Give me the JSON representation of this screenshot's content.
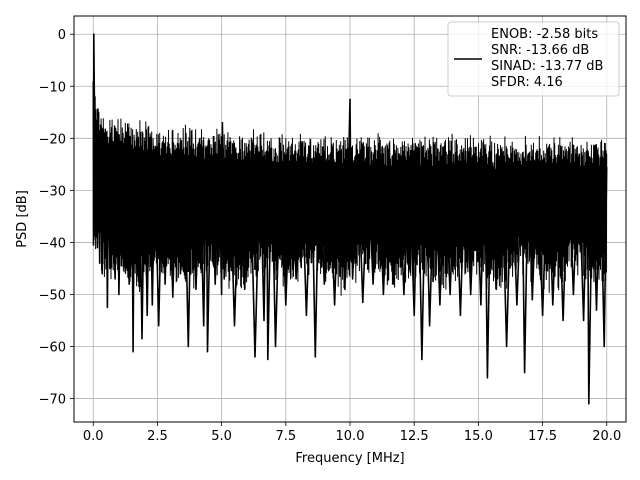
{
  "chart_data": {
    "type": "line",
    "xlabel": "Frequency [MHz]",
    "ylabel": "PSD [dB]",
    "xlim": [
      -0.75,
      20.75
    ],
    "ylim": [
      -74.5,
      3.5
    ],
    "xticks": [
      0.0,
      2.5,
      5.0,
      7.5,
      10.0,
      12.5,
      15.0,
      17.5,
      20.0
    ],
    "xtick_labels": [
      "0.0",
      "2.5",
      "5.0",
      "7.5",
      "10.0",
      "12.5",
      "15.0",
      "17.5",
      "20.0"
    ],
    "yticks": [
      0,
      -10,
      -20,
      -30,
      -40,
      -50,
      -60,
      -70
    ],
    "ytick_labels": [
      "0",
      "−10",
      "−20",
      "−30",
      "−40",
      "−50",
      "−60",
      "−70"
    ],
    "grid": true,
    "legend_position": "top-right",
    "legend_lines": [
      "ENOB: -2.58 bits",
      "SNR: -13.66 dB",
      "SINAD: -13.77 dB",
      "SFDR: 4.16"
    ],
    "line_color": "#000000",
    "series": [
      {
        "points": [
          [
            0.0,
            -9.0
          ],
          [
            0.01,
            -40.5
          ],
          [
            0.02,
            0.0
          ],
          [
            0.04,
            -11.5
          ],
          [
            0.06,
            -35.0
          ],
          [
            0.08,
            -15.0
          ],
          [
            0.1,
            -39.0
          ],
          [
            0.13,
            -17.0
          ],
          [
            0.16,
            -41.0
          ],
          [
            0.2,
            -19.0
          ],
          [
            0.25,
            -44.0
          ],
          [
            0.3,
            -17.5
          ],
          [
            0.35,
            -46.0
          ],
          [
            0.4,
            -20.0
          ],
          [
            0.45,
            -43.0
          ],
          [
            0.5,
            -22.0
          ],
          [
            0.55,
            -52.5
          ],
          [
            0.6,
            -21.0
          ],
          [
            0.65,
            -45.0
          ],
          [
            0.75,
            -21.5
          ],
          [
            0.85,
            -47.0
          ],
          [
            0.95,
            -24.0
          ],
          [
            1.0,
            -50.0
          ],
          [
            1.1,
            -21.0
          ],
          [
            1.2,
            -44.0
          ],
          [
            1.3,
            -20.5
          ],
          [
            1.4,
            -48.0
          ],
          [
            1.5,
            -23.0
          ],
          [
            1.55,
            -61.0
          ],
          [
            1.6,
            -22.0
          ],
          [
            1.7,
            -45.0
          ],
          [
            1.8,
            -24.0
          ],
          [
            1.9,
            -58.5
          ],
          [
            2.0,
            -22.5
          ],
          [
            2.1,
            -54.0
          ],
          [
            2.2,
            -21.0
          ],
          [
            2.3,
            -52.0
          ],
          [
            2.4,
            -25.0
          ],
          [
            2.55,
            -56.0
          ],
          [
            2.7,
            -22.5
          ],
          [
            2.8,
            -48.0
          ],
          [
            2.95,
            -23.0
          ],
          [
            3.1,
            -50.5
          ],
          [
            3.25,
            -22.0
          ],
          [
            3.4,
            -46.0
          ],
          [
            3.55,
            -24.5
          ],
          [
            3.7,
            -60.0
          ],
          [
            3.85,
            -22.0
          ],
          [
            4.0,
            -49.0
          ],
          [
            4.15,
            -24.0
          ],
          [
            4.3,
            -56.0
          ],
          [
            4.4,
            -22.0
          ],
          [
            4.45,
            -61.0
          ],
          [
            4.6,
            -23.0
          ],
          [
            4.75,
            -48.0
          ],
          [
            4.9,
            -21.5
          ],
          [
            5.0,
            -50.0
          ],
          [
            5.03,
            -17.0
          ],
          [
            5.1,
            -47.0
          ],
          [
            5.3,
            -22.5
          ],
          [
            5.5,
            -56.0
          ],
          [
            5.7,
            -24.0
          ],
          [
            5.9,
            -49.0
          ],
          [
            6.1,
            -22.5
          ],
          [
            6.3,
            -62.0
          ],
          [
            6.5,
            -24.0
          ],
          [
            6.65,
            -55.0
          ],
          [
            6.75,
            -22.5
          ],
          [
            6.8,
            -62.5
          ],
          [
            6.95,
            -24.0
          ],
          [
            7.1,
            -60.0
          ],
          [
            7.3,
            -22.5
          ],
          [
            7.5,
            -52.0
          ],
          [
            7.7,
            -24.0
          ],
          [
            7.9,
            -47.0
          ],
          [
            8.1,
            -22.5
          ],
          [
            8.3,
            -54.0
          ],
          [
            8.5,
            -24.0
          ],
          [
            8.65,
            -62.0
          ],
          [
            8.8,
            -23.0
          ],
          [
            9.0,
            -48.0
          ],
          [
            9.2,
            -24.5
          ],
          [
            9.4,
            -52.0
          ],
          [
            9.6,
            -22.5
          ],
          [
            9.8,
            -49.0
          ],
          [
            9.95,
            -24.0
          ],
          [
            10.0,
            -12.5
          ],
          [
            10.02,
            -24.0
          ],
          [
            10.1,
            -47.0
          ],
          [
            10.3,
            -23.5
          ],
          [
            10.5,
            -51.5
          ],
          [
            10.7,
            -25.0
          ],
          [
            10.9,
            -48.0
          ],
          [
            11.1,
            -22.5
          ],
          [
            11.3,
            -50.0
          ],
          [
            11.5,
            -25.0
          ],
          [
            11.7,
            -48.0
          ],
          [
            11.9,
            -23.0
          ],
          [
            12.1,
            -50.0
          ],
          [
            12.3,
            -24.0
          ],
          [
            12.5,
            -54.0
          ],
          [
            12.65,
            -23.0
          ],
          [
            12.8,
            -62.5
          ],
          [
            12.95,
            -24.5
          ],
          [
            13.1,
            -56.0
          ],
          [
            13.3,
            -23.0
          ],
          [
            13.5,
            -52.0
          ],
          [
            13.7,
            -24.0
          ],
          [
            13.9,
            -50.0
          ],
          [
            14.1,
            -23.0
          ],
          [
            14.3,
            -54.0
          ],
          [
            14.5,
            -22.5
          ],
          [
            14.7,
            -50.0
          ],
          [
            14.9,
            -24.0
          ],
          [
            15.1,
            -52.0
          ],
          [
            15.25,
            -23.0
          ],
          [
            15.35,
            -66.0
          ],
          [
            15.5,
            -24.0
          ],
          [
            15.7,
            -49.0
          ],
          [
            15.9,
            -23.0
          ],
          [
            16.1,
            -60.0
          ],
          [
            16.3,
            -24.5
          ],
          [
            16.5,
            -52.0
          ],
          [
            16.7,
            -25.5
          ],
          [
            16.8,
            -65.0
          ],
          [
            16.95,
            -23.0
          ],
          [
            17.1,
            -51.0
          ],
          [
            17.3,
            -24.5
          ],
          [
            17.5,
            -54.0
          ],
          [
            17.7,
            -23.0
          ],
          [
            17.9,
            -52.0
          ],
          [
            18.1,
            -24.5
          ],
          [
            18.3,
            -55.0
          ],
          [
            18.5,
            -23.0
          ],
          [
            18.7,
            -50.0
          ],
          [
            18.9,
            -24.0
          ],
          [
            19.1,
            -55.0
          ],
          [
            19.25,
            -24.0
          ],
          [
            19.3,
            -71.0
          ],
          [
            19.45,
            -25.5
          ],
          [
            19.6,
            -53.0
          ],
          [
            19.75,
            -24.0
          ],
          [
            19.9,
            -60.0
          ],
          [
            20.0,
            -25.5
          ]
        ]
      }
    ]
  }
}
